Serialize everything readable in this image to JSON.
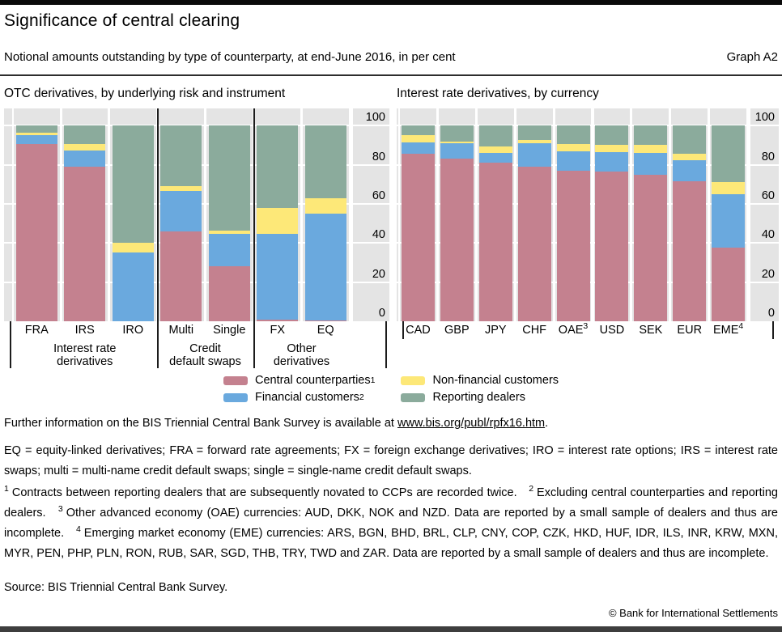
{
  "page": {
    "title": "Significance of central clearing",
    "subtitle": "Notional amounts outstanding by type of counterparty, at end-June 2016, in per cent",
    "graph_label": "Graph A2"
  },
  "colors": {
    "central_counterparties": "#c4818f",
    "financial_customers": "#6aa9de",
    "non_financial_customers": "#fde878",
    "reporting_dealers": "#8bab9c",
    "plot_background": "#e4e4e4"
  },
  "legend": [
    {
      "label": "Central counterparties",
      "sup": "1",
      "color": "#c4818f"
    },
    {
      "label": "Non-financial customers",
      "sup": "",
      "color": "#fde878"
    },
    {
      "label": "Financial customers",
      "sup": "2",
      "color": "#6aa9de"
    },
    {
      "label": "Reporting dealers",
      "sup": "",
      "color": "#8bab9c"
    }
  ],
  "chart_data": [
    {
      "type": "bar",
      "stacked": true,
      "title": "OTC derivatives, by underlying risk and instrument",
      "categories": [
        "FRA",
        "IRS",
        "IRO",
        "Multi",
        "Single",
        "FX",
        "EQ"
      ],
      "category_sups": [
        "",
        "",
        "",
        "",
        "",
        "",
        ""
      ],
      "groups": [
        {
          "label": "Interest rate derivatives",
          "lines": [
            "Interest rate",
            "derivatives"
          ],
          "from": 0,
          "to": 2
        },
        {
          "label": "Credit default swaps",
          "lines": [
            "Credit",
            "default swaps"
          ],
          "from": 3,
          "to": 4
        },
        {
          "label": "Other derivatives",
          "lines": [
            "Other",
            "derivatives"
          ],
          "from": 5,
          "to": 6
        }
      ],
      "series": [
        {
          "name": "Central counterparties",
          "color": "#c4818f",
          "values": [
            90.5,
            79,
            0,
            46,
            28,
            1,
            0.5
          ]
        },
        {
          "name": "Financial customers",
          "color": "#6aa9de",
          "values": [
            4.5,
            8.5,
            35,
            20.5,
            16.5,
            43.5,
            54.5
          ]
        },
        {
          "name": "Non-financial customers",
          "color": "#fde878",
          "values": [
            1.5,
            3,
            5,
            2.5,
            2,
            13.5,
            8
          ]
        },
        {
          "name": "Reporting dealers",
          "color": "#8bab9c",
          "values": [
            3.5,
            9.5,
            60,
            31,
            53.5,
            42,
            37
          ]
        }
      ],
      "ylim": [
        0,
        100
      ],
      "yticks": [
        0,
        20,
        40,
        60,
        80,
        100
      ],
      "unit": "per cent",
      "legend_position": "bottom",
      "grid": true
    },
    {
      "type": "bar",
      "stacked": true,
      "title": "Interest rate derivatives, by currency",
      "categories": [
        "CAD",
        "GBP",
        "JPY",
        "CHF",
        "OAE",
        "USD",
        "SEK",
        "EUR",
        "EME"
      ],
      "category_sups": [
        "",
        "",
        "",
        "",
        "3",
        "",
        "",
        "",
        "4"
      ],
      "groups": [],
      "series": [
        {
          "name": "Central counterparties",
          "color": "#c4818f",
          "values": [
            85.5,
            83,
            81,
            79,
            77,
            76.5,
            75,
            71.5,
            37.5
          ]
        },
        {
          "name": "Financial customers",
          "color": "#6aa9de",
          "values": [
            6,
            8,
            5,
            12,
            10,
            10,
            11,
            11,
            27.5
          ]
        },
        {
          "name": "Non-financial customers",
          "color": "#fde878",
          "values": [
            3.5,
            1,
            3.5,
            1.5,
            3.5,
            3.5,
            4,
            3,
            6
          ]
        },
        {
          "name": "Reporting dealers",
          "color": "#8bab9c",
          "values": [
            5,
            8,
            10.5,
            7.5,
            9.5,
            10,
            10,
            14.5,
            29
          ]
        }
      ],
      "ylim": [
        0,
        100
      ],
      "yticks": [
        0,
        20,
        40,
        60,
        80,
        100
      ],
      "unit": "per cent",
      "legend_position": "bottom",
      "grid": true
    }
  ],
  "footer": {
    "further_info": {
      "prefix": "Further information on the BIS Triennial Central Bank Survey is available at ",
      "link": "www.bis.org/publ/rpfx16.htm",
      "suffix": "."
    },
    "definitions": "EQ = equity-linked derivatives; FRA = forward rate agreements; FX = foreign exchange derivatives; IRO = interest rate options; IRS = interest rate swaps; multi = multi-name credit default swaps; single = single-name credit default swaps.",
    "footnotes": [
      {
        "sup": "1",
        "text": "Contracts between reporting dealers that are subsequently novated to CCPs are recorded twice."
      },
      {
        "sup": "2",
        "text": "Excluding central counterparties and reporting dealers."
      },
      {
        "sup": "3",
        "text": "Other advanced economy (OAE) currencies: AUD, DKK, NOK and NZD. Data are reported by a small sample of dealers and thus are incomplete."
      },
      {
        "sup": "4",
        "text": "Emerging market economy (EME) currencies: ARS, BGN, BHD, BRL, CLP, CNY, COP, CZK, HKD, HUF, IDR, ILS, INR, KRW, MXN, MYR, PEN, PHP, PLN, RON, RUB, SAR, SGD, THB, TRY, TWD and ZAR. Data are reported by a small sample of dealers and thus are incomplete."
      }
    ],
    "source": "Source: BIS Triennial Central Bank Survey.",
    "copyright": "© Bank for International Settlements"
  }
}
